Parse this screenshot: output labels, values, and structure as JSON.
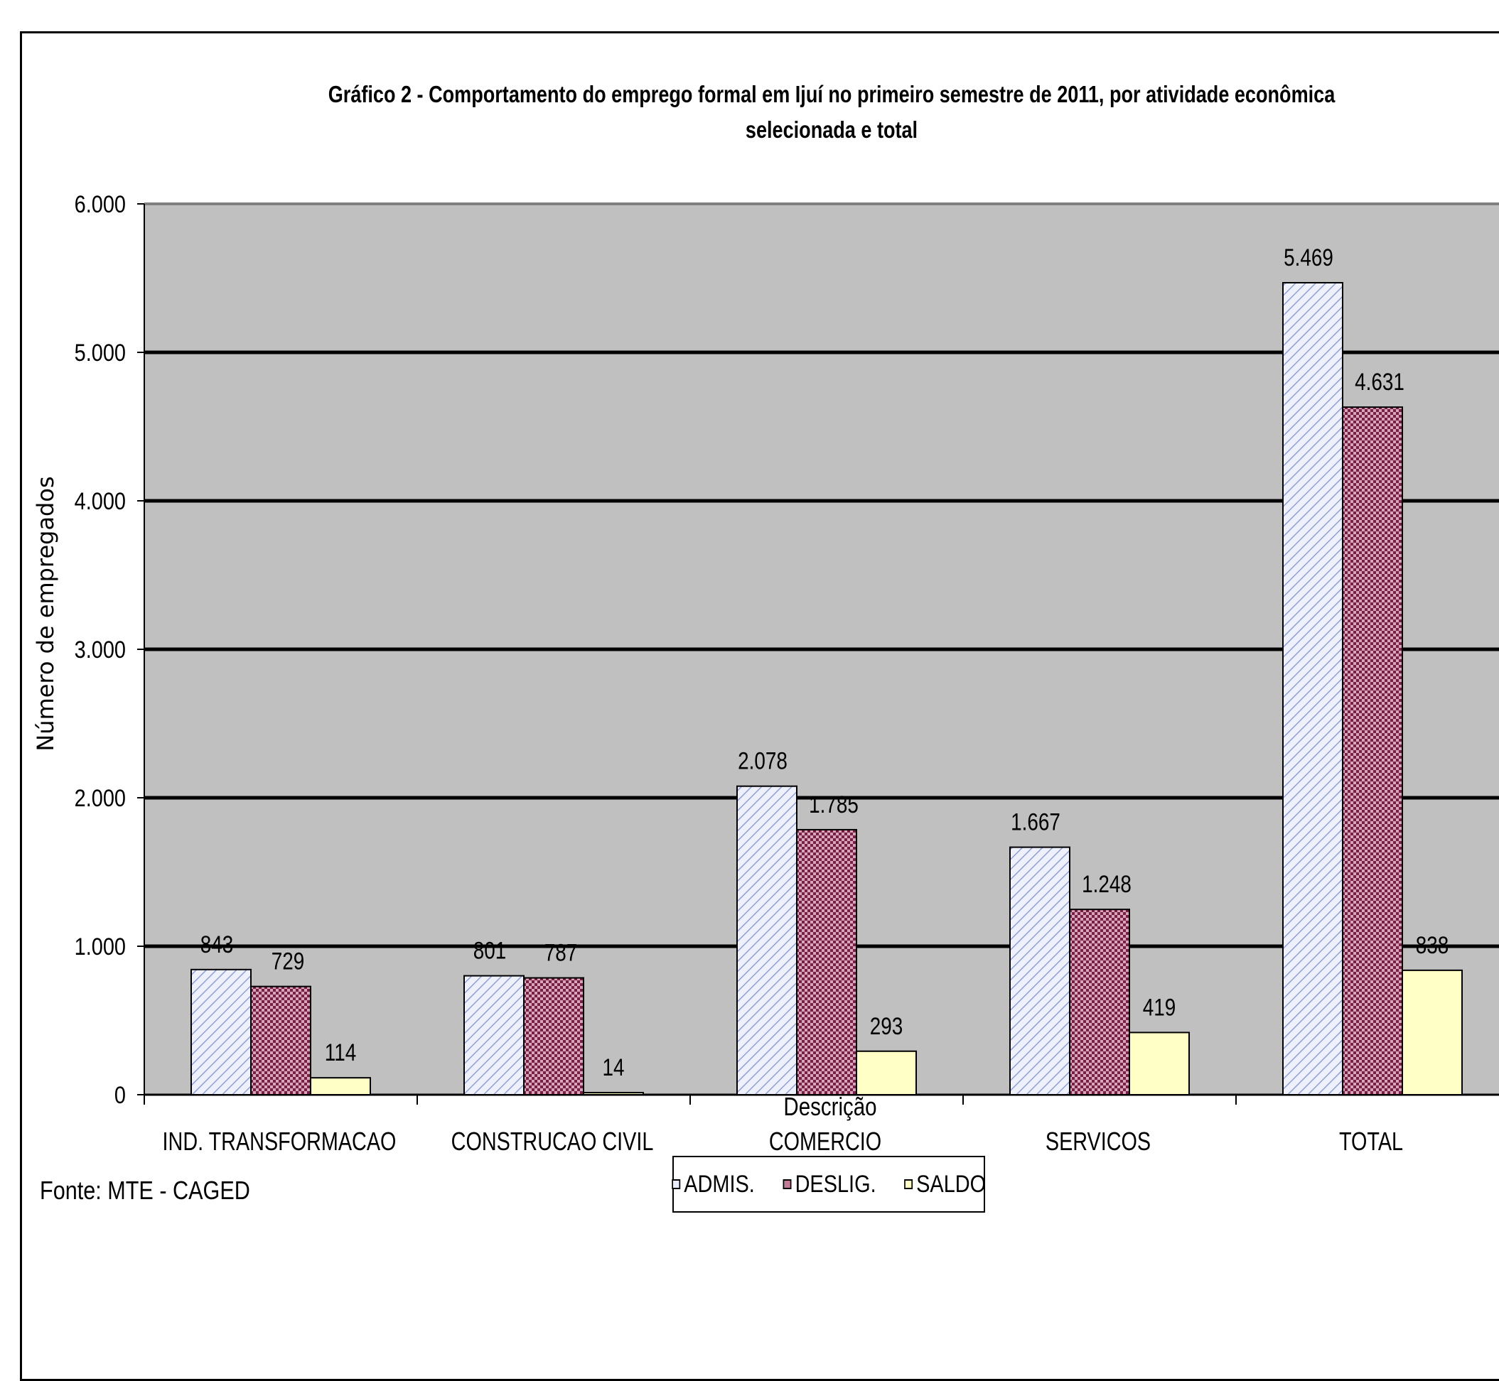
{
  "chart_data": {
    "type": "bar",
    "title": "Gráfico 2 - Comportamento do emprego formal em Ijuí no primeiro semestre de 2011, por atividade econômica",
    "title_line2": "selecionada e total",
    "xlabel": "Descrição",
    "ylabel": "Número de empregados",
    "ylim": [
      0,
      6000
    ],
    "yticks": [
      0,
      1000,
      2000,
      3000,
      4000,
      5000,
      6000
    ],
    "ytick_labels": [
      "0",
      "1.000",
      "2.000",
      "3.000",
      "4.000",
      "5.000",
      "6.000"
    ],
    "grid": true,
    "legend": "bottom-center",
    "categories": [
      "IND. TRANSFORMACAO",
      "CONSTRUCAO  CIVIL",
      "COMERCIO",
      "SERVICOS",
      "TOTAL"
    ],
    "series": [
      {
        "name": "ADMIS.",
        "values": [
          843,
          801,
          2078,
          1667,
          5469
        ],
        "labels": [
          "843",
          "801",
          "2.078",
          "1.667",
          "5.469"
        ],
        "color": "#e8ecfb",
        "stroke": "#8fa0d8"
      },
      {
        "name": "DESLIG.",
        "values": [
          729,
          787,
          1785,
          1248,
          4631
        ],
        "labels": [
          "729",
          "787",
          "1.785",
          "1.248",
          "4.631"
        ],
        "color": "#c57a98",
        "stroke": "#7a1f44"
      },
      {
        "name": "SALDO",
        "values": [
          114,
          14,
          293,
          419,
          838
        ],
        "labels": [
          "114",
          "14",
          "293",
          "419",
          "838"
        ],
        "color": "#ffffc6",
        "stroke": "#000000"
      }
    ],
    "plot_background": "#c0c0c0"
  },
  "source": "Fonte: MTE - CAGED"
}
